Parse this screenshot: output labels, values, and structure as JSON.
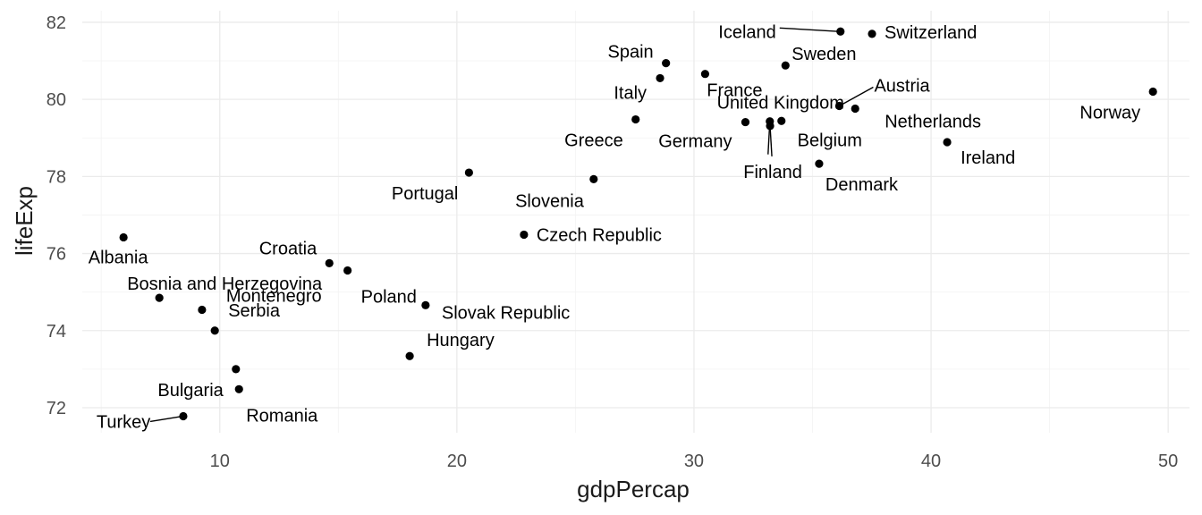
{
  "chart_data": {
    "type": "scatter",
    "title": "",
    "xlabel": "gdpPercap",
    "ylabel": "lifeExp",
    "xlim": [
      4.2,
      50.9
    ],
    "ylim": [
      71.35,
      82.3
    ],
    "x_ticks": [
      10,
      20,
      30,
      40,
      50
    ],
    "x_tick_labels": [
      "10",
      "20",
      "30",
      "40",
      "50"
    ],
    "y_ticks": [
      72,
      74,
      76,
      78,
      80,
      82
    ],
    "y_tick_labels": [
      "72",
      "74",
      "76",
      "78",
      "80",
      "82"
    ],
    "grid": true,
    "legend": "none",
    "point_color": "#000000",
    "points": [
      {
        "label": "Albania",
        "x": 5.94,
        "y": 76.42
      },
      {
        "label": "Bosnia and Herzegovina",
        "x": 7.45,
        "y": 74.85
      },
      {
        "label": "Turkey",
        "x": 8.46,
        "y": 71.78
      },
      {
        "label": "Montenegro",
        "x": 9.25,
        "y": 74.54
      },
      {
        "label": "Serbia",
        "x": 9.79,
        "y": 74.0
      },
      {
        "label": "Romania",
        "x": 10.81,
        "y": 72.48
      },
      {
        "label": "Bulgaria",
        "x": 10.68,
        "y": 73.0
      },
      {
        "label": "Croatia",
        "x": 14.62,
        "y": 75.75
      },
      {
        "label": "Poland",
        "x": 15.39,
        "y": 75.56
      },
      {
        "label": "Hungary",
        "x": 18.01,
        "y": 73.34
      },
      {
        "label": "Slovak Republic",
        "x": 18.68,
        "y": 74.66
      },
      {
        "label": "Portugal",
        "x": 20.51,
        "y": 78.1
      },
      {
        "label": "Czech Republic",
        "x": 22.83,
        "y": 76.49
      },
      {
        "label": "Slovenia",
        "x": 25.77,
        "y": 77.93
      },
      {
        "label": "Greece",
        "x": 27.54,
        "y": 79.48
      },
      {
        "label": "Italy",
        "x": 28.57,
        "y": 80.55
      },
      {
        "label": "Spain",
        "x": 28.82,
        "y": 80.94
      },
      {
        "label": "France",
        "x": 30.47,
        "y": 80.66
      },
      {
        "label": "Germany",
        "x": 32.17,
        "y": 79.41
      },
      {
        "label": "United Kingdom",
        "x": 33.2,
        "y": 79.43
      },
      {
        "label": "Finland",
        "x": 33.21,
        "y": 79.31
      },
      {
        "label": "Belgium",
        "x": 33.69,
        "y": 79.44
      },
      {
        "label": "Sweden",
        "x": 33.86,
        "y": 80.88
      },
      {
        "label": "Denmark",
        "x": 35.28,
        "y": 78.33
      },
      {
        "label": "Iceland",
        "x": 36.18,
        "y": 81.76
      },
      {
        "label": "Austria",
        "x": 36.13,
        "y": 79.83
      },
      {
        "label": "Netherlands",
        "x": 36.8,
        "y": 79.76
      },
      {
        "label": "Switzerland",
        "x": 37.51,
        "y": 81.7
      },
      {
        "label": "Ireland",
        "x": 40.68,
        "y": 78.89
      },
      {
        "label": "Norway",
        "x": 49.36,
        "y": 80.2
      }
    ]
  }
}
